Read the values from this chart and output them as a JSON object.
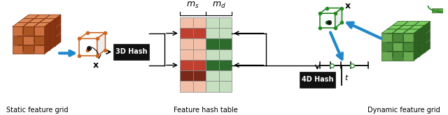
{
  "bg_color": "#ffffff",
  "labels": {
    "static_grid": "Static feature grid",
    "feature_table": "Feature hash table",
    "dynamic_grid": "Dynamic feature grid",
    "hash_3d": "3D Hash",
    "hash_4d": "4D Hash"
  },
  "grid_left_colors": [
    [
      "#f2bfaa",
      "#f2bfaa"
    ],
    [
      "#c0432b",
      "#c0432b"
    ],
    [
      "#f2bfaa",
      "#f2bfaa"
    ],
    [
      "#f2bfaa",
      "#f2bfaa"
    ],
    [
      "#c0432b",
      "#c0432b"
    ],
    [
      "#f2bfaa",
      "#f2bfaa"
    ]
  ],
  "grid_right_colors": [
    [
      "#c5e0c0",
      "#c5e0c0"
    ],
    [
      "#c5e0c0",
      "#c5e0c0"
    ],
    [
      "#2d6b2d",
      "#2d6b2d"
    ],
    [
      "#c5e0c0",
      "#c5e0c0"
    ],
    [
      "#2d6b2d",
      "#2d6b2d"
    ],
    [
      "#c5e0c0",
      "#c5e0c0"
    ]
  ],
  "brick_color_light": "#c87848",
  "brick_color_dark": "#a05030",
  "brick_color_darker": "#7a3010",
  "green_dark": "#4a7a3a",
  "green_mid": "#6aaa4a",
  "green_light": "#8aca6a"
}
